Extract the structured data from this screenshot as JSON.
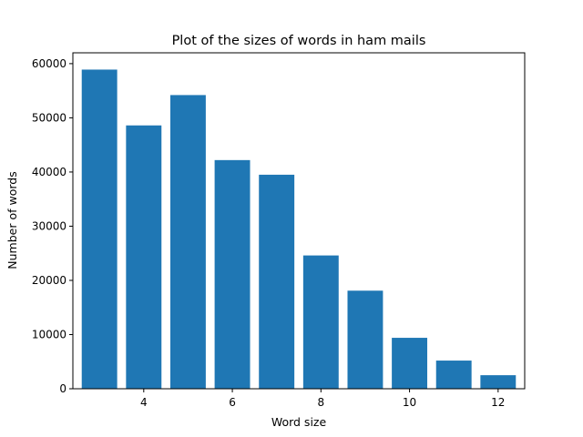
{
  "chart_data": {
    "type": "bar",
    "title": "Plot of the sizes of words in ham mails",
    "xlabel": "Word size",
    "ylabel": "Number of words",
    "x": [
      3,
      4,
      5,
      6,
      7,
      8,
      9,
      10,
      11,
      12
    ],
    "values": [
      58900,
      48600,
      54200,
      42200,
      39500,
      24600,
      18100,
      9400,
      5200,
      2500
    ],
    "xlim": [
      2.4,
      12.6
    ],
    "ylim": [
      0,
      62000
    ],
    "xticks": [
      4,
      6,
      8,
      10,
      12
    ],
    "yticks": [
      0,
      10000,
      20000,
      30000,
      40000,
      50000,
      60000
    ],
    "bar_width": 0.8,
    "bar_color": "#1f77b4",
    "grid": false,
    "legend": "none"
  }
}
